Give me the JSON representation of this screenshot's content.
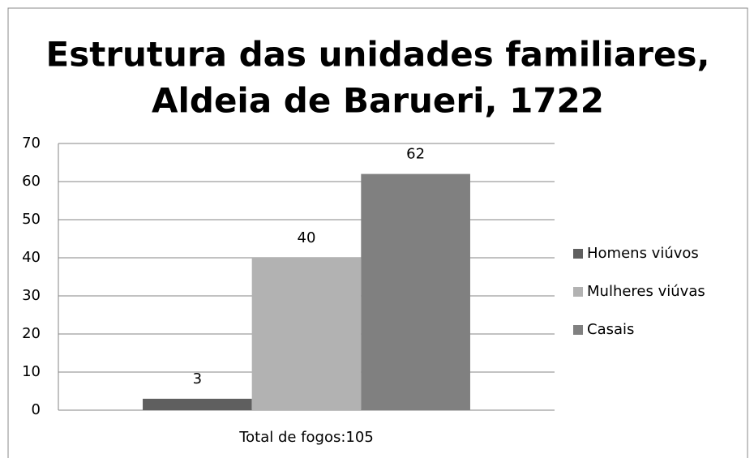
{
  "chart_data": {
    "type": "bar",
    "title": [
      "Estrutura das unidades familiares,",
      "Aldeia de Barueri, 1722"
    ],
    "categories": [
      "Total de fogos:105"
    ],
    "series": [
      {
        "name": "Homens viúvos",
        "color": "#5f5f5f",
        "values": [
          3
        ]
      },
      {
        "name": "Mulheres viúvas",
        "color": "#b2b2b2",
        "values": [
          40
        ]
      },
      {
        "name": "Casais",
        "color": "#808080",
        "values": [
          62
        ]
      }
    ],
    "ylim": [
      0,
      70
    ],
    "yticks": [
      0,
      10,
      20,
      30,
      40,
      50,
      60,
      70
    ],
    "grid": true,
    "legend": "right"
  }
}
